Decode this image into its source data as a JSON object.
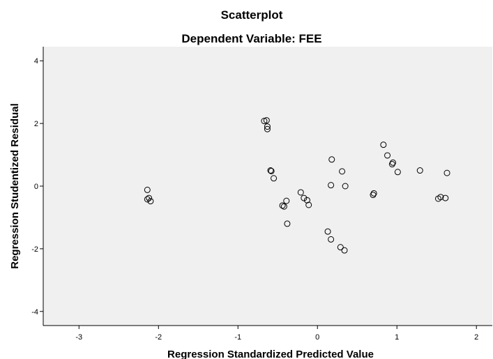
{
  "chart_data": {
    "type": "scatter",
    "title": "Scatterplot",
    "subtitle": "Dependent Variable: FEE",
    "xlabel": "Regression Standardized Predicted Value",
    "ylabel": "Regression Studentized Residual",
    "xlim": [
      -3.45,
      2.2
    ],
    "ylim": [
      -4.45,
      4.45
    ],
    "xticks": [
      -3,
      -2,
      -1,
      0,
      1,
      2
    ],
    "yticks": [
      -4,
      -2,
      0,
      2,
      4
    ],
    "xtick_labels": [
      "-3",
      "-2",
      "-1",
      "0",
      "1",
      "2"
    ],
    "ytick_labels": [
      "-4",
      "-2",
      "0",
      "2",
      "4"
    ],
    "plot_background": "#f0f0f0",
    "marker_style": "open-circle",
    "marker_color": "#000000",
    "grid": false,
    "points": [
      {
        "x": -2.14,
        "y": -0.12
      },
      {
        "x": -2.14,
        "y": -0.42
      },
      {
        "x": -2.12,
        "y": -0.38
      },
      {
        "x": -2.1,
        "y": -0.48
      },
      {
        "x": -0.67,
        "y": 2.08
      },
      {
        "x": -0.64,
        "y": 2.1
      },
      {
        "x": -0.63,
        "y": 1.9
      },
      {
        "x": -0.63,
        "y": 1.82
      },
      {
        "x": -0.59,
        "y": 0.5
      },
      {
        "x": -0.58,
        "y": 0.48
      },
      {
        "x": -0.55,
        "y": 0.25
      },
      {
        "x": -0.44,
        "y": -0.62
      },
      {
        "x": -0.42,
        "y": -0.65
      },
      {
        "x": -0.39,
        "y": -0.47
      },
      {
        "x": -0.38,
        "y": -1.2
      },
      {
        "x": -0.21,
        "y": -0.2
      },
      {
        "x": -0.17,
        "y": -0.38
      },
      {
        "x": -0.13,
        "y": -0.45
      },
      {
        "x": -0.11,
        "y": -0.6
      },
      {
        "x": 0.13,
        "y": -1.45
      },
      {
        "x": 0.17,
        "y": -1.7
      },
      {
        "x": 0.17,
        "y": 0.03
      },
      {
        "x": 0.18,
        "y": 0.85
      },
      {
        "x": 0.29,
        "y": -1.95
      },
      {
        "x": 0.31,
        "y": 0.47
      },
      {
        "x": 0.34,
        "y": -2.05
      },
      {
        "x": 0.35,
        "y": 0.0
      },
      {
        "x": 0.7,
        "y": -0.28
      },
      {
        "x": 0.71,
        "y": -0.23
      },
      {
        "x": 0.83,
        "y": 1.32
      },
      {
        "x": 0.88,
        "y": 0.98
      },
      {
        "x": 0.94,
        "y": 0.7
      },
      {
        "x": 0.95,
        "y": 0.75
      },
      {
        "x": 1.01,
        "y": 0.45
      },
      {
        "x": 1.29,
        "y": 0.5
      },
      {
        "x": 1.52,
        "y": -0.4
      },
      {
        "x": 1.55,
        "y": -0.35
      },
      {
        "x": 1.61,
        "y": -0.38
      },
      {
        "x": 1.63,
        "y": 0.42
      }
    ]
  }
}
